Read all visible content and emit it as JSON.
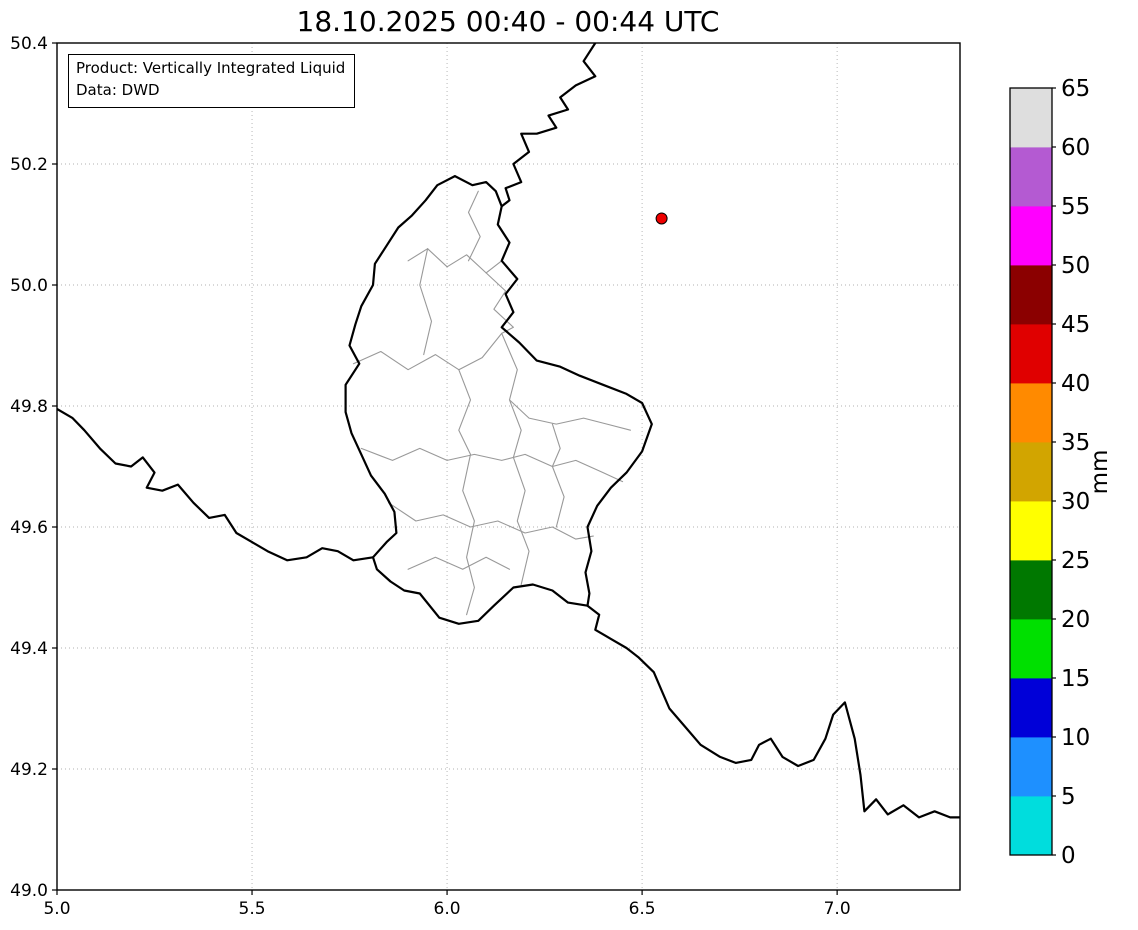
{
  "chart_data": {
    "type": "map",
    "title": "18.10.2025 00:40 - 00:44 UTC",
    "annotation_box": [
      "Product: Vertically Integrated Liquid",
      "Data: DWD"
    ],
    "x_axis": {
      "range": [
        5.0,
        7.315
      ],
      "tick_values": [
        5.0,
        5.5,
        6.0,
        6.5,
        7.0
      ],
      "tick_labels": [
        "5.0",
        "5.5",
        "6.0",
        "6.5",
        "7.0"
      ]
    },
    "y_axis": {
      "range": [
        49.0,
        50.4
      ],
      "tick_values": [
        49.0,
        49.2,
        49.4,
        49.6,
        49.8,
        50.0,
        50.2,
        50.4
      ],
      "tick_labels": [
        "49.0",
        "49.2",
        "49.4",
        "49.6",
        "49.8",
        "50.0",
        "50.2",
        "50.4"
      ]
    },
    "grid": {
      "style": "dotted",
      "color": "#b0b0b0"
    },
    "precipitation_cells_visible": [],
    "radar_marker": {
      "lon": 6.55,
      "lat": 50.11,
      "color": "#ee0000",
      "edge_color": "#000000"
    },
    "colorbar": {
      "label": "mm",
      "range": [
        0,
        65
      ],
      "tick_step": 5,
      "tick_labels": [
        "0",
        "5",
        "10",
        "15",
        "20",
        "25",
        "30",
        "35",
        "40",
        "45",
        "50",
        "55",
        "60",
        "65"
      ],
      "segment_colors_bottom_to_top": [
        "#00dddd",
        "#1e90ff",
        "#0000d8",
        "#00e000",
        "#007800",
        "#ffff00",
        "#d2a500",
        "#ff8a00",
        "#e00000",
        "#8b0000",
        "#ff00ff",
        "#b45ad2",
        "#dedede"
      ]
    },
    "borders": {
      "national": [
        [
          [
            6.02,
            50.18
          ],
          [
            6.065,
            50.165
          ],
          [
            6.1,
            50.17
          ],
          [
            6.125,
            50.155
          ],
          [
            6.14,
            50.13
          ],
          [
            6.13,
            50.1
          ],
          [
            6.16,
            50.07
          ],
          [
            6.14,
            50.04
          ],
          [
            6.18,
            50.01
          ],
          [
            6.15,
            49.985
          ],
          [
            6.17,
            49.955
          ],
          [
            6.14,
            49.93
          ],
          [
            6.185,
            49.905
          ],
          [
            6.23,
            49.875
          ],
          [
            6.29,
            49.865
          ],
          [
            6.34,
            49.85
          ],
          [
            6.4,
            49.835
          ],
          [
            6.46,
            49.82
          ],
          [
            6.5,
            49.805
          ],
          [
            6.525,
            49.77
          ],
          [
            6.5,
            49.725
          ],
          [
            6.46,
            49.69
          ],
          [
            6.42,
            49.665
          ],
          [
            6.385,
            49.635
          ],
          [
            6.36,
            49.6
          ],
          [
            6.37,
            49.56
          ],
          [
            6.355,
            49.525
          ],
          [
            6.365,
            49.49
          ],
          [
            6.36,
            49.47
          ],
          [
            6.31,
            49.475
          ],
          [
            6.27,
            49.495
          ],
          [
            6.22,
            49.505
          ],
          [
            6.17,
            49.5
          ],
          [
            6.12,
            49.47
          ],
          [
            6.08,
            49.445
          ],
          [
            6.03,
            49.44
          ],
          [
            5.98,
            49.45
          ],
          [
            5.93,
            49.49
          ],
          [
            5.89,
            49.495
          ],
          [
            5.855,
            49.51
          ],
          [
            5.82,
            49.53
          ],
          [
            5.81,
            49.55
          ],
          [
            5.845,
            49.575
          ],
          [
            5.87,
            49.59
          ],
          [
            5.865,
            49.625
          ],
          [
            5.84,
            49.655
          ],
          [
            5.805,
            49.685
          ],
          [
            5.78,
            49.72
          ],
          [
            5.755,
            49.755
          ],
          [
            5.74,
            49.79
          ],
          [
            5.74,
            49.835
          ],
          [
            5.775,
            49.87
          ],
          [
            5.75,
            49.9
          ],
          [
            5.765,
            49.935
          ],
          [
            5.78,
            49.965
          ],
          [
            5.81,
            50.0
          ],
          [
            5.815,
            50.035
          ],
          [
            5.845,
            50.065
          ],
          [
            5.875,
            50.095
          ],
          [
            5.91,
            50.115
          ],
          [
            5.945,
            50.14
          ],
          [
            5.975,
            50.165
          ],
          [
            6.02,
            50.18
          ]
        ],
        [
          [
            6.38,
            50.4
          ],
          [
            6.35,
            50.37
          ],
          [
            6.38,
            50.345
          ],
          [
            6.33,
            50.33
          ],
          [
            6.29,
            50.31
          ],
          [
            6.31,
            50.29
          ],
          [
            6.26,
            50.28
          ],
          [
            6.28,
            50.26
          ],
          [
            6.23,
            50.25
          ],
          [
            6.19,
            50.25
          ],
          [
            6.21,
            50.22
          ],
          [
            6.17,
            50.2
          ],
          [
            6.19,
            50.17
          ],
          [
            6.15,
            50.16
          ],
          [
            6.16,
            50.14
          ],
          [
            6.14,
            50.13
          ]
        ],
        [
          [
            5.0,
            49.795
          ],
          [
            5.04,
            49.78
          ],
          [
            5.07,
            49.76
          ],
          [
            5.11,
            49.73
          ],
          [
            5.15,
            49.705
          ],
          [
            5.19,
            49.7
          ],
          [
            5.22,
            49.715
          ],
          [
            5.25,
            49.69
          ],
          [
            5.23,
            49.665
          ],
          [
            5.27,
            49.66
          ],
          [
            5.31,
            49.67
          ],
          [
            5.35,
            49.64
          ],
          [
            5.39,
            49.615
          ],
          [
            5.43,
            49.62
          ],
          [
            5.46,
            49.59
          ],
          [
            5.5,
            49.575
          ],
          [
            5.54,
            49.56
          ],
          [
            5.59,
            49.545
          ],
          [
            5.64,
            49.55
          ],
          [
            5.68,
            49.565
          ],
          [
            5.72,
            49.56
          ],
          [
            5.76,
            49.545
          ],
          [
            5.81,
            49.55
          ]
        ],
        [
          [
            6.36,
            49.47
          ],
          [
            6.39,
            49.455
          ],
          [
            6.38,
            49.43
          ],
          [
            6.42,
            49.415
          ],
          [
            6.46,
            49.4
          ],
          [
            6.49,
            49.385
          ],
          [
            6.53,
            49.36
          ],
          [
            6.55,
            49.33
          ],
          [
            6.57,
            49.3
          ],
          [
            6.61,
            49.27
          ],
          [
            6.65,
            49.24
          ],
          [
            6.7,
            49.22
          ],
          [
            6.74,
            49.21
          ],
          [
            6.78,
            49.215
          ],
          [
            6.8,
            49.24
          ],
          [
            6.83,
            49.25
          ],
          [
            6.86,
            49.22
          ],
          [
            6.9,
            49.205
          ],
          [
            6.94,
            49.215
          ],
          [
            6.97,
            49.25
          ],
          [
            6.99,
            49.29
          ],
          [
            7.02,
            49.31
          ],
          [
            7.045,
            49.25
          ],
          [
            7.06,
            49.19
          ],
          [
            7.07,
            49.13
          ],
          [
            7.1,
            49.15
          ],
          [
            7.13,
            49.125
          ],
          [
            7.17,
            49.14
          ],
          [
            7.21,
            49.12
          ],
          [
            7.25,
            49.13
          ],
          [
            7.29,
            49.12
          ],
          [
            7.315,
            49.12
          ]
        ]
      ],
      "regional": [
        [
          [
            5.9,
            50.04
          ],
          [
            5.95,
            50.06
          ],
          [
            6.0,
            50.03
          ],
          [
            6.05,
            50.05
          ],
          [
            6.1,
            50.02
          ],
          [
            6.14,
            50.04
          ]
        ],
        [
          [
            5.76,
            49.87
          ],
          [
            5.83,
            49.89
          ],
          [
            5.9,
            49.86
          ],
          [
            5.97,
            49.885
          ],
          [
            6.03,
            49.86
          ],
          [
            6.09,
            49.88
          ],
          [
            6.14,
            49.92
          ]
        ],
        [
          [
            6.14,
            49.92
          ],
          [
            6.18,
            49.86
          ],
          [
            6.16,
            49.81
          ],
          [
            6.21,
            49.78
          ],
          [
            6.28,
            49.77
          ],
          [
            6.35,
            49.78
          ],
          [
            6.41,
            49.77
          ],
          [
            6.47,
            49.76
          ]
        ],
        [
          [
            5.78,
            49.73
          ],
          [
            5.86,
            49.71
          ],
          [
            5.93,
            49.73
          ],
          [
            6.0,
            49.71
          ],
          [
            6.07,
            49.72
          ],
          [
            6.14,
            49.71
          ],
          [
            6.2,
            49.72
          ],
          [
            6.27,
            49.7
          ],
          [
            6.33,
            49.71
          ],
          [
            6.4,
            49.69
          ],
          [
            6.45,
            49.675
          ]
        ],
        [
          [
            5.85,
            49.64
          ],
          [
            5.92,
            49.61
          ],
          [
            5.99,
            49.62
          ],
          [
            6.06,
            49.6
          ],
          [
            6.13,
            49.61
          ],
          [
            6.2,
            49.59
          ],
          [
            6.27,
            49.6
          ],
          [
            6.33,
            49.58
          ],
          [
            6.375,
            49.585
          ]
        ],
        [
          [
            5.9,
            49.53
          ],
          [
            5.97,
            49.55
          ],
          [
            6.04,
            49.53
          ],
          [
            6.1,
            49.55
          ],
          [
            6.16,
            49.53
          ]
        ],
        [
          [
            5.95,
            50.06
          ],
          [
            5.93,
            50.0
          ],
          [
            5.96,
            49.94
          ],
          [
            5.94,
            49.885
          ]
        ],
        [
          [
            6.03,
            49.86
          ],
          [
            6.06,
            49.81
          ],
          [
            6.03,
            49.76
          ],
          [
            6.06,
            49.72
          ],
          [
            6.04,
            49.66
          ],
          [
            6.07,
            49.61
          ],
          [
            6.05,
            49.55
          ],
          [
            6.07,
            49.5
          ],
          [
            6.05,
            49.455
          ]
        ],
        [
          [
            6.16,
            49.81
          ],
          [
            6.19,
            49.76
          ],
          [
            6.17,
            49.715
          ],
          [
            6.2,
            49.66
          ],
          [
            6.18,
            49.61
          ],
          [
            6.21,
            49.56
          ],
          [
            6.19,
            49.505
          ]
        ],
        [
          [
            6.27,
            49.77
          ],
          [
            6.29,
            49.73
          ],
          [
            6.27,
            49.7
          ],
          [
            6.3,
            49.65
          ],
          [
            6.28,
            49.6
          ]
        ],
        [
          [
            6.08,
            50.155
          ],
          [
            6.055,
            50.12
          ],
          [
            6.085,
            50.08
          ],
          [
            6.055,
            50.04
          ]
        ],
        [
          [
            6.1,
            50.02
          ],
          [
            6.15,
            49.99
          ],
          [
            6.12,
            49.96
          ],
          [
            6.17,
            49.93
          ],
          [
            6.14,
            49.92
          ]
        ]
      ]
    }
  }
}
